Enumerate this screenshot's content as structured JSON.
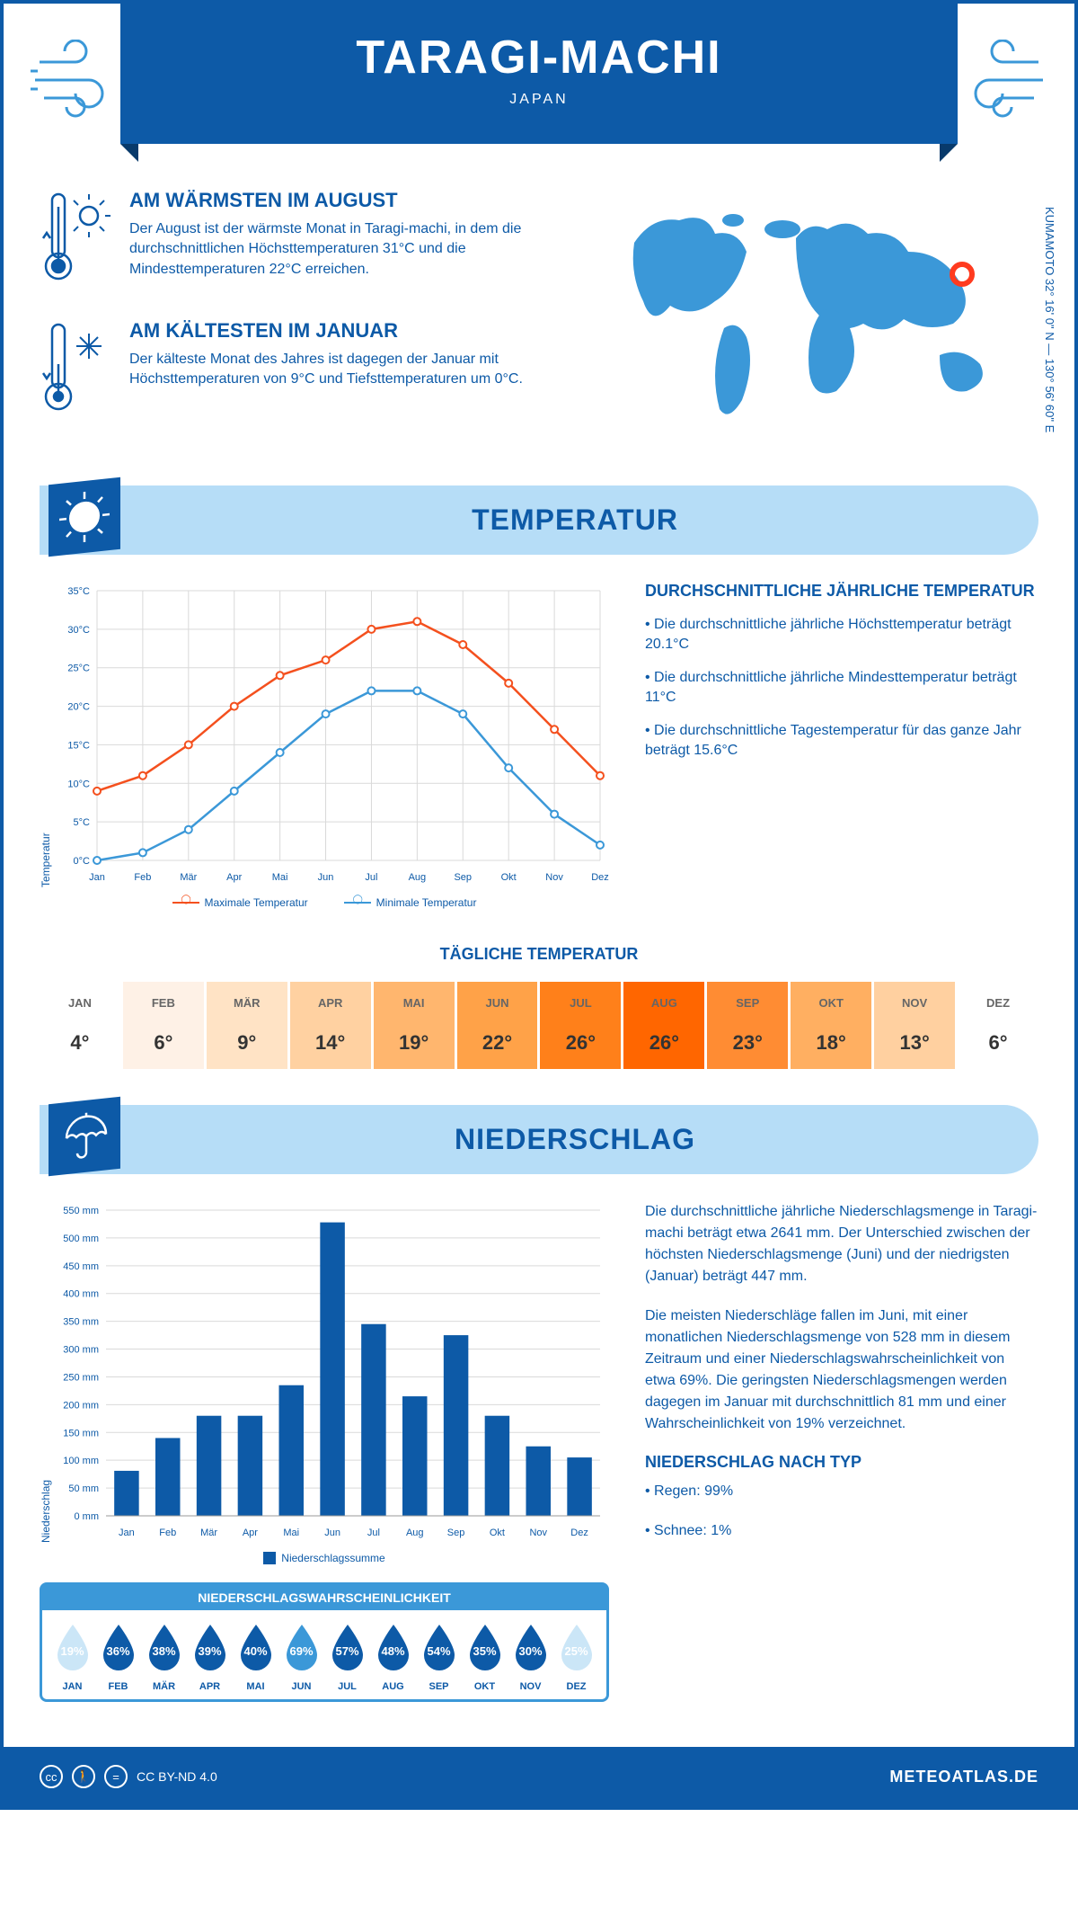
{
  "header": {
    "title": "TARAGI-MACHI",
    "subtitle": "JAPAN"
  },
  "coords": "KUMAMOTO   32° 16' 0\" N — 130° 56' 60\" E",
  "intro": {
    "warm": {
      "title": "AM WÄRMSTEN IM AUGUST",
      "text": "Der August ist der wärmste Monat in Taragi-machi, in dem die durchschnittlichen Höchsttemperaturen 31°C und die Mindesttemperaturen 22°C erreichen."
    },
    "cold": {
      "title": "AM KÄLTESTEN IM JANUAR",
      "text": "Der kälteste Monat des Jahres ist dagegen der Januar mit Höchsttemperaturen von 9°C und Tiefsttemperaturen um 0°C."
    }
  },
  "sections": {
    "temperature": "TEMPERATUR",
    "precipitation": "NIEDERSCHLAG"
  },
  "temp_chart": {
    "type": "line",
    "ylabel": "Temperatur",
    "months": [
      "Jan",
      "Feb",
      "Mär",
      "Apr",
      "Mai",
      "Jun",
      "Jul",
      "Aug",
      "Sep",
      "Okt",
      "Nov",
      "Dez"
    ],
    "series": [
      {
        "name": "Maximale Temperatur",
        "color": "#f4501e",
        "values": [
          9,
          11,
          15,
          20,
          24,
          26,
          30,
          31,
          28,
          23,
          17,
          11
        ]
      },
      {
        "name": "Minimale Temperatur",
        "color": "#3b98d8",
        "values": [
          0,
          1,
          4,
          9,
          14,
          19,
          22,
          22,
          19,
          12,
          6,
          2
        ]
      }
    ],
    "ylim": [
      0,
      35
    ],
    "ytick_step": 5,
    "grid_color": "#d9d9d9",
    "legend_max": "Maximale Temperatur",
    "legend_min": "Minimale Temperatur"
  },
  "temp_info": {
    "title": "DURCHSCHNITTLICHE JÄHRLICHE TEMPERATUR",
    "b1": "• Die durchschnittliche jährliche Höchsttemperatur beträgt 20.1°C",
    "b2": "• Die durchschnittliche jährliche Mindesttemperatur beträgt 11°C",
    "b3": "• Die durchschnittliche Tagestemperatur für das ganze Jahr beträgt 15.6°C"
  },
  "daily_temp": {
    "title": "TÄGLICHE TEMPERATUR",
    "months": [
      "JAN",
      "FEB",
      "MÄR",
      "APR",
      "MAI",
      "JUN",
      "JUL",
      "AUG",
      "SEP",
      "OKT",
      "NOV",
      "DEZ"
    ],
    "values": [
      "4°",
      "6°",
      "9°",
      "14°",
      "19°",
      "22°",
      "26°",
      "26°",
      "23°",
      "18°",
      "13°",
      "6°"
    ],
    "colors": [
      "#ffffff",
      "#fef1e6",
      "#ffe3c5",
      "#ffd1a1",
      "#ffb66e",
      "#ffa248",
      "#ff801a",
      "#ff6600",
      "#ff8c33",
      "#ffaf61",
      "#ffd0a0",
      "#ffffff"
    ]
  },
  "precip_chart": {
    "type": "bar",
    "ylabel": "Niederschlag",
    "months": [
      "Jan",
      "Feb",
      "Mär",
      "Apr",
      "Mai",
      "Jun",
      "Jul",
      "Aug",
      "Sep",
      "Okt",
      "Nov",
      "Dez"
    ],
    "values": [
      81,
      140,
      180,
      180,
      235,
      528,
      345,
      215,
      325,
      180,
      125,
      105
    ],
    "bar_color": "#0d5aa7",
    "ylim": [
      0,
      550
    ],
    "ytick_step": 50,
    "grid_color": "#d9d9d9",
    "legend": "Niederschlagssumme"
  },
  "precip_text": {
    "p1": "Die durchschnittliche jährliche Niederschlagsmenge in Taragi-machi beträgt etwa 2641 mm. Der Unterschied zwischen der höchsten Niederschlagsmenge (Juni) und der niedrigsten (Januar) beträgt 447 mm.",
    "p2": "Die meisten Niederschläge fallen im Juni, mit einer monatlichen Niederschlagsmenge von 528 mm in diesem Zeitraum und einer Niederschlagswahrscheinlichkeit von etwa 69%. Die geringsten Niederschlagsmengen werden dagegen im Januar mit durchschnittlich 81 mm und einer Wahrscheinlichkeit von 19% verzeichnet.",
    "type_title": "NIEDERSCHLAG NACH TYP",
    "type_1": "• Regen: 99%",
    "type_2": "• Schnee: 1%"
  },
  "prob": {
    "title": "NIEDERSCHLAGSWAHRSCHEINLICHKEIT",
    "months": [
      "JAN",
      "FEB",
      "MÄR",
      "APR",
      "MAI",
      "JUN",
      "JUL",
      "AUG",
      "SEP",
      "OKT",
      "NOV",
      "DEZ"
    ],
    "pct": [
      "19%",
      "36%",
      "38%",
      "39%",
      "40%",
      "69%",
      "57%",
      "48%",
      "54%",
      "35%",
      "30%",
      "25%"
    ],
    "colors": [
      "#cbe6f7",
      "#0d5aa7",
      "#0d5aa7",
      "#0d5aa7",
      "#0d5aa7",
      "#3b98d8",
      "#0d5aa7",
      "#0d5aa7",
      "#0d5aa7",
      "#0d5aa7",
      "#0d5aa7",
      "#cbe6f7"
    ]
  },
  "footer": {
    "license": "CC BY-ND 4.0",
    "brand": "METEOATLAS.DE"
  }
}
